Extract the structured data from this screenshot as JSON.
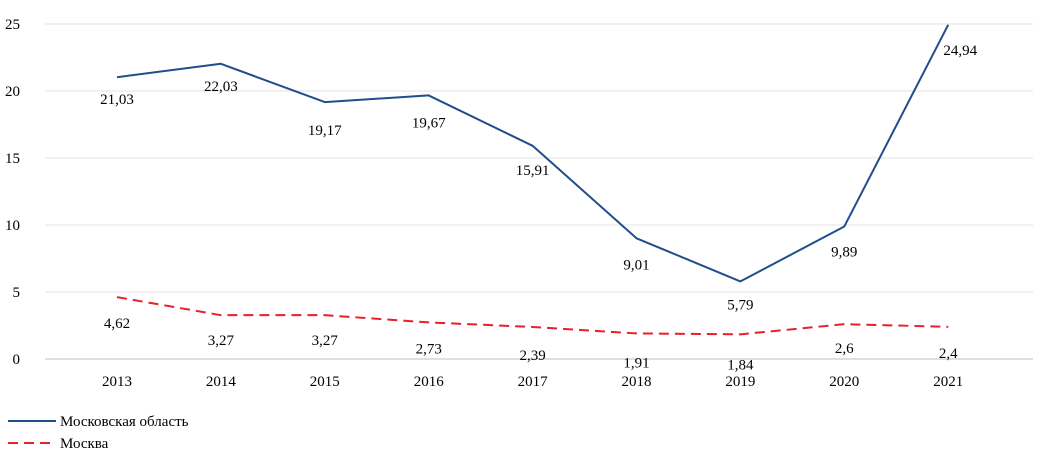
{
  "chart_data": {
    "type": "line",
    "title": "",
    "xlabel": "",
    "ylabel": "",
    "categories": [
      "2013",
      "2014",
      "2015",
      "2016",
      "2017",
      "2018",
      "2019",
      "2020",
      "2021"
    ],
    "ylim": [
      0,
      25
    ],
    "yticks": [
      "0",
      "5",
      "10",
      "15",
      "20",
      "25"
    ],
    "grid": "horizontal",
    "legend_position": "bottom-left",
    "series": [
      {
        "name": "Московская область",
        "values": [
          21.03,
          22.03,
          19.17,
          19.67,
          15.91,
          9.01,
          5.79,
          9.89,
          24.94
        ],
        "labels": [
          "21,03",
          "22,03",
          "19,17",
          "19,67",
          "15,91",
          "9,01",
          "5,79",
          "9,89",
          "24,94"
        ],
        "color": "#1f4e8c",
        "style": "solid"
      },
      {
        "name": "Москва",
        "values": [
          4.62,
          3.27,
          3.27,
          2.73,
          2.39,
          1.91,
          1.84,
          2.6,
          2.4
        ],
        "labels": [
          "4,62",
          "3,27",
          "3,27",
          "2,73",
          "2,39",
          "1,91",
          "1,84",
          "2,6",
          "2,4"
        ],
        "color": "#e8202a",
        "style": "dashed"
      }
    ]
  }
}
